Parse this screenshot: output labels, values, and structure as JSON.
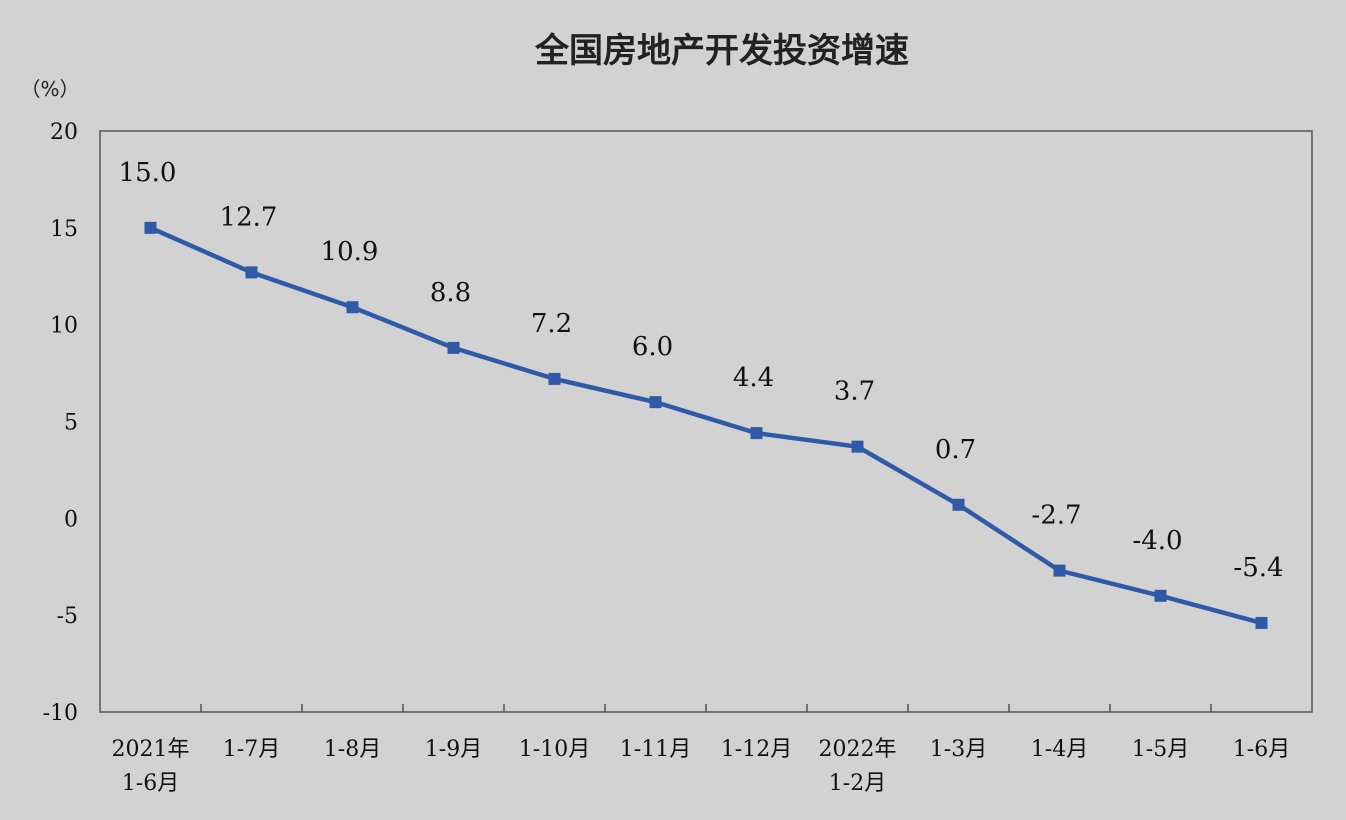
{
  "chart_data": {
    "type": "line",
    "title": "全国房地产开发投资增速",
    "unit_label": "（%）",
    "categories": [
      [
        "2021年",
        "1-6月"
      ],
      [
        "1-7月"
      ],
      [
        "1-8月"
      ],
      [
        "1-9月"
      ],
      [
        "1-10月"
      ],
      [
        "1-11月"
      ],
      [
        "1-12月"
      ],
      [
        "2022年",
        "1-2月"
      ],
      [
        "1-3月"
      ],
      [
        "1-4月"
      ],
      [
        "1-5月"
      ],
      [
        "1-6月"
      ]
    ],
    "values": [
      15.0,
      12.7,
      10.9,
      8.8,
      7.2,
      6.0,
      4.4,
      3.7,
      0.7,
      -2.7,
      -4.0,
      -5.4
    ],
    "data_labels": [
      "15.0",
      "12.7",
      "10.9",
      "8.8",
      "7.2",
      "6.0",
      "4.4",
      "3.7",
      "0.7",
      "-2.7",
      "-4.0",
      "-5.4"
    ],
    "ylim": [
      -10,
      20
    ],
    "yticks": [
      20,
      15,
      10,
      5,
      0,
      -5,
      -10
    ],
    "grid": false,
    "colors": {
      "line": "#2e5aa7",
      "background": "#d2d2d2",
      "plot_background": "#d2d2d2",
      "axis": "#555555"
    }
  }
}
